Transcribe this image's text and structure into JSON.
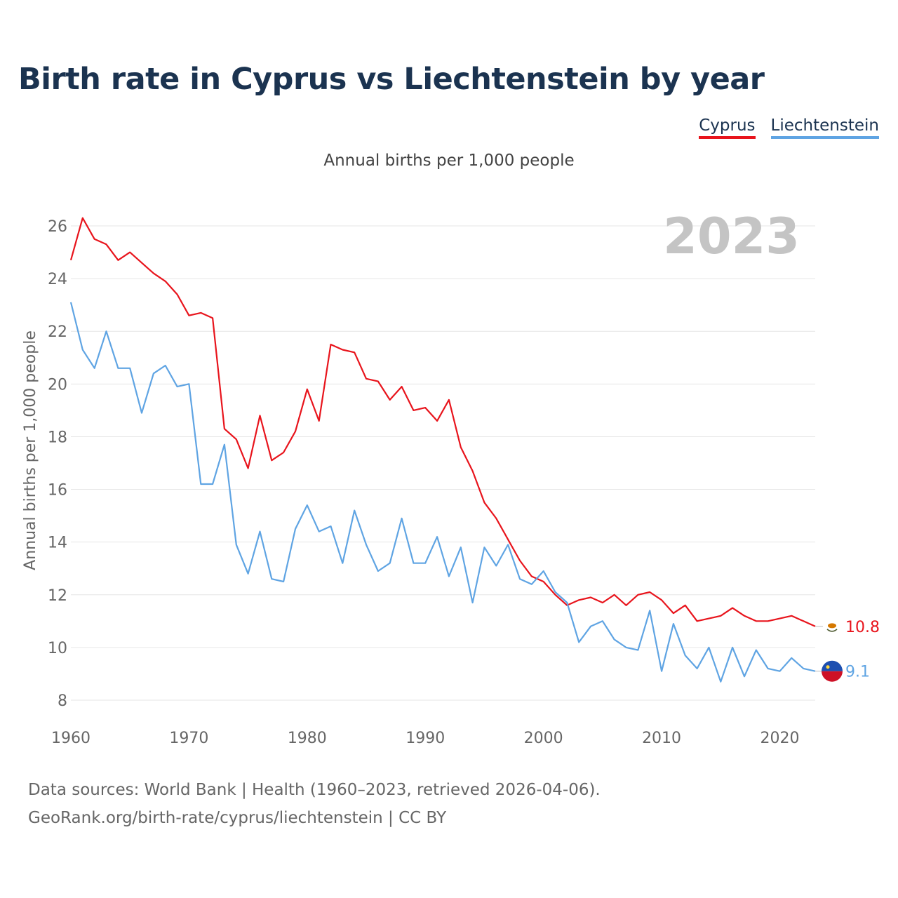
{
  "title": "Birth rate in Cyprus vs Liechtenstein by year",
  "subtitle": "Annual births per 1,000 people",
  "footer": {
    "line1": "Data sources: World Bank | Health (1960–2023, retrieved 2026-04-06).",
    "line2": "GeoRank.org/birth-rate/cyprus/liechtenstein | CC BY"
  },
  "chart_data": {
    "type": "line",
    "title": "Birth rate in Cyprus vs Liechtenstein by year",
    "ylabel": "Annual births per 1,000 people",
    "xlabel": "",
    "year_label": "2023",
    "xlim": [
      1960,
      2023
    ],
    "ylim": [
      7.3,
      27
    ],
    "x_ticks": [
      1960,
      1970,
      1980,
      1990,
      2000,
      2010,
      2020
    ],
    "y_ticks": [
      8,
      10,
      12,
      14,
      16,
      18,
      20,
      22,
      24,
      26
    ],
    "grid": true,
    "legend_position": "top-right",
    "x": [
      1960,
      1961,
      1962,
      1963,
      1964,
      1965,
      1966,
      1967,
      1968,
      1969,
      1970,
      1971,
      1972,
      1973,
      1974,
      1975,
      1976,
      1977,
      1978,
      1979,
      1980,
      1981,
      1982,
      1983,
      1984,
      1985,
      1986,
      1987,
      1988,
      1989,
      1990,
      1991,
      1992,
      1993,
      1994,
      1995,
      1996,
      1997,
      1998,
      1999,
      2000,
      2001,
      2002,
      2003,
      2004,
      2005,
      2006,
      2007,
      2008,
      2009,
      2010,
      2011,
      2012,
      2013,
      2014,
      2015,
      2016,
      2017,
      2018,
      2019,
      2020,
      2021,
      2022,
      2023
    ],
    "series": [
      {
        "name": "Cyprus",
        "color": "#e8141c",
        "end_label": "10.8",
        "values": [
          24.7,
          26.3,
          25.5,
          25.3,
          24.7,
          25.0,
          24.6,
          24.2,
          23.9,
          23.4,
          22.6,
          22.7,
          22.5,
          18.3,
          17.9,
          16.8,
          18.8,
          17.1,
          17.4,
          18.2,
          19.8,
          18.6,
          21.5,
          21.3,
          21.2,
          20.2,
          20.1,
          19.4,
          19.9,
          19.0,
          19.1,
          18.6,
          19.4,
          17.6,
          16.7,
          15.5,
          14.9,
          14.1,
          13.3,
          12.7,
          12.5,
          12.0,
          11.6,
          11.8,
          11.9,
          11.7,
          12.0,
          11.6,
          12.0,
          12.1,
          11.8,
          11.3,
          11.6,
          11.0,
          11.1,
          11.2,
          11.5,
          11.2,
          11.0,
          11.0,
          11.1,
          11.2,
          11.0,
          10.8
        ]
      },
      {
        "name": "Liechtenstein",
        "color": "#5fa4e3",
        "end_label": "9.1",
        "values": [
          23.1,
          21.3,
          20.6,
          22.0,
          20.6,
          20.6,
          18.9,
          20.4,
          20.7,
          19.9,
          20.0,
          16.2,
          16.2,
          17.7,
          13.9,
          12.8,
          14.4,
          12.6,
          12.5,
          14.5,
          15.4,
          14.4,
          14.6,
          13.2,
          15.2,
          13.9,
          12.9,
          13.2,
          14.9,
          13.2,
          13.2,
          14.2,
          12.7,
          13.8,
          11.7,
          13.8,
          13.1,
          13.9,
          12.6,
          12.4,
          12.9,
          12.1,
          11.7,
          10.2,
          10.8,
          11.0,
          10.3,
          10.0,
          9.9,
          11.4,
          9.1,
          10.9,
          9.7,
          9.2,
          10.0,
          8.7,
          10.0,
          8.9,
          9.9,
          9.2,
          9.1,
          9.6,
          9.2,
          9.1
        ]
      }
    ]
  }
}
